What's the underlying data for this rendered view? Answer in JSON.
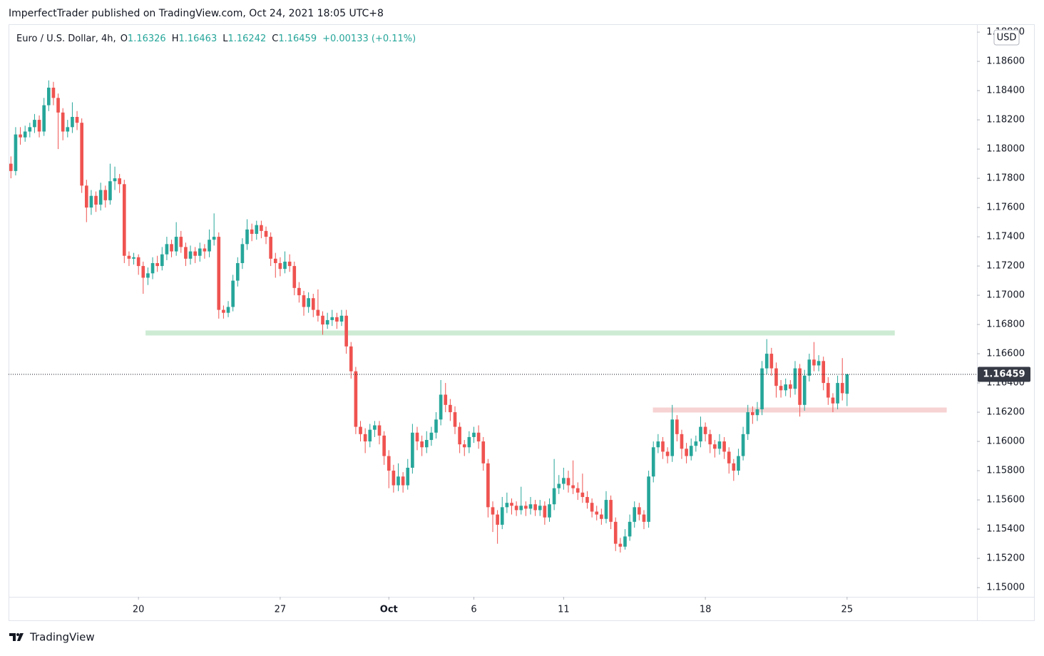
{
  "header": {
    "byline": "ImperfectTrader published on TradingView.com, Oct 24, 2021 18:05 UTC+8",
    "footer": "TradingView"
  },
  "chart_data": {
    "type": "candlestick",
    "symbol": "Euro / U.S. Dollar, 4h,",
    "legend_keys": [
      "O",
      "H",
      "L",
      "C"
    ],
    "change": "+0.00133 (+0.11%)",
    "currency": "USD",
    "up_color": "#26a69a",
    "down_color": "#ef5350",
    "xlim": [
      0,
      205
    ],
    "xticks": [
      {
        "value": 27,
        "label": "20"
      },
      {
        "value": 57,
        "label": "27"
      },
      {
        "value": 80,
        "label": "Oct"
      },
      {
        "value": 98,
        "label": "6"
      },
      {
        "value": 117,
        "label": "11"
      },
      {
        "value": 147,
        "label": "18"
      },
      {
        "value": 177,
        "label": "25"
      }
    ],
    "ylim": [
      1.14937,
      1.18854
    ],
    "yticks": [
      {
        "value": 1.15,
        "label": "1.15000"
      },
      {
        "value": 1.152,
        "label": "1.15200"
      },
      {
        "value": 1.154,
        "label": "1.15400"
      },
      {
        "value": 1.156,
        "label": "1.15600"
      },
      {
        "value": 1.158,
        "label": "1.15800"
      },
      {
        "value": 1.16,
        "label": "1.16000"
      },
      {
        "value": 1.162,
        "label": "1.16200"
      },
      {
        "value": 1.164,
        "label": "1.16400"
      },
      {
        "value": 1.166,
        "label": "1.16600"
      },
      {
        "value": 1.168,
        "label": "1.16800"
      },
      {
        "value": 1.17,
        "label": "1.17000"
      },
      {
        "value": 1.172,
        "label": "1.17200"
      },
      {
        "value": 1.174,
        "label": "1.17400"
      },
      {
        "value": 1.176,
        "label": "1.17600"
      },
      {
        "value": 1.178,
        "label": "1.17800"
      },
      {
        "value": 1.18,
        "label": "1.18000"
      },
      {
        "value": 1.182,
        "label": "1.18200"
      },
      {
        "value": 1.184,
        "label": "1.18400"
      },
      {
        "value": 1.186,
        "label": "1.18600"
      },
      {
        "value": 1.188,
        "label": "1.18800"
      }
    ],
    "zones": [
      {
        "y": 1.16742,
        "x": [
          29,
          187.6
        ],
        "color": "#cdebd3"
      },
      {
        "y": 1.16215,
        "x": [
          136.4,
          198.6
        ],
        "color": "#f7d3d3"
      }
    ],
    "candles": [
      [
        1.179,
        1.1795,
        1.178,
        1.1785
      ],
      [
        1.1785,
        1.1815,
        1.1782,
        1.181
      ],
      [
        1.181,
        1.1815,
        1.1803,
        1.1808
      ],
      [
        1.1808,
        1.1816,
        1.1805,
        1.1812
      ],
      [
        1.1812,
        1.1818,
        1.1808,
        1.1815
      ],
      [
        1.1815,
        1.1824,
        1.1811,
        1.182
      ],
      [
        1.182,
        1.1823,
        1.1808,
        1.1812
      ],
      [
        1.1812,
        1.1835,
        1.1809,
        1.183
      ],
      [
        1.183,
        1.1847,
        1.1826,
        1.1842
      ],
      [
        1.1842,
        1.1846,
        1.183,
        1.1835
      ],
      [
        1.1835,
        1.1838,
        1.18,
        1.1825
      ],
      [
        1.1825,
        1.1828,
        1.1806,
        1.1812
      ],
      [
        1.1812,
        1.182,
        1.1808,
        1.1815
      ],
      [
        1.1815,
        1.1832,
        1.1811,
        1.1822
      ],
      [
        1.1822,
        1.1826,
        1.1813,
        1.1818
      ],
      [
        1.1818,
        1.1821,
        1.177,
        1.1775
      ],
      [
        1.1775,
        1.1779,
        1.175,
        1.176
      ],
      [
        1.176,
        1.1772,
        1.1755,
        1.1768
      ],
      [
        1.1768,
        1.1771,
        1.1757,
        1.1762
      ],
      [
        1.1762,
        1.1777,
        1.1758,
        1.1772
      ],
      [
        1.1772,
        1.1775,
        1.176,
        1.1765
      ],
      [
        1.1765,
        1.179,
        1.1762,
        1.1778
      ],
      [
        1.1778,
        1.1788,
        1.1772,
        1.178
      ],
      [
        1.178,
        1.1783,
        1.177,
        1.1776
      ],
      [
        1.1776,
        1.1779,
        1.1722,
        1.1727
      ],
      [
        1.1727,
        1.173,
        1.172,
        1.1725
      ],
      [
        1.1725,
        1.1729,
        1.1721,
        1.1726
      ],
      [
        1.1726,
        1.1728,
        1.1714,
        1.172
      ],
      [
        1.172,
        1.1723,
        1.1701,
        1.1712
      ],
      [
        1.1712,
        1.1719,
        1.1707,
        1.1715
      ],
      [
        1.1715,
        1.1726,
        1.1711,
        1.1722
      ],
      [
        1.1722,
        1.1727,
        1.1716,
        1.172
      ],
      [
        1.172,
        1.1733,
        1.1717,
        1.1728
      ],
      [
        1.1728,
        1.174,
        1.1724,
        1.1735
      ],
      [
        1.1735,
        1.1738,
        1.1726,
        1.173
      ],
      [
        1.173,
        1.175,
        1.1727,
        1.174
      ],
      [
        1.174,
        1.1744,
        1.1729,
        1.1733
      ],
      [
        1.1733,
        1.1736,
        1.172,
        1.1725
      ],
      [
        1.1725,
        1.1734,
        1.1721,
        1.173
      ],
      [
        1.173,
        1.1733,
        1.1722,
        1.1727
      ],
      [
        1.1727,
        1.1736,
        1.1723,
        1.1732
      ],
      [
        1.1732,
        1.1735,
        1.1725,
        1.173
      ],
      [
        1.173,
        1.1745,
        1.1726,
        1.1738
      ],
      [
        1.1738,
        1.1756,
        1.1734,
        1.174
      ],
      [
        1.174,
        1.1743,
        1.1684,
        1.169
      ],
      [
        1.169,
        1.1693,
        1.1684,
        1.1688
      ],
      [
        1.1688,
        1.1696,
        1.1685,
        1.1692
      ],
      [
        1.1692,
        1.1714,
        1.1689,
        1.171
      ],
      [
        1.171,
        1.1726,
        1.1706,
        1.1722
      ],
      [
        1.1722,
        1.1739,
        1.1718,
        1.1735
      ],
      [
        1.1735,
        1.1752,
        1.1731,
        1.1745
      ],
      [
        1.1745,
        1.1749,
        1.1737,
        1.1742
      ],
      [
        1.1742,
        1.1751,
        1.1738,
        1.1748
      ],
      [
        1.1748,
        1.1751,
        1.1739,
        1.1744
      ],
      [
        1.1744,
        1.1747,
        1.1735,
        1.174
      ],
      [
        1.174,
        1.1743,
        1.172,
        1.1725
      ],
      [
        1.1725,
        1.1729,
        1.1712,
        1.1722
      ],
      [
        1.1722,
        1.1726,
        1.1713,
        1.1718
      ],
      [
        1.1718,
        1.173,
        1.1715,
        1.1723
      ],
      [
        1.1723,
        1.1728,
        1.1716,
        1.172
      ],
      [
        1.172,
        1.1723,
        1.17,
        1.1705
      ],
      [
        1.1705,
        1.1709,
        1.1695,
        1.17
      ],
      [
        1.17,
        1.1703,
        1.1686,
        1.1692
      ],
      [
        1.1692,
        1.1702,
        1.1688,
        1.1698
      ],
      [
        1.1698,
        1.1701,
        1.1685,
        1.169
      ],
      [
        1.169,
        1.1704,
        1.1682,
        1.1686
      ],
      [
        1.1686,
        1.1689,
        1.1673,
        1.168
      ],
      [
        1.168,
        1.1688,
        1.1677,
        1.1683
      ],
      [
        1.1683,
        1.169,
        1.1679,
        1.1685
      ],
      [
        1.1685,
        1.1688,
        1.1677,
        1.1682
      ],
      [
        1.1682,
        1.169,
        1.1679,
        1.1686
      ],
      [
        1.1686,
        1.169,
        1.166,
        1.1665
      ],
      [
        1.1665,
        1.1668,
        1.1643,
        1.1648
      ],
      [
        1.1648,
        1.1651,
        1.1605,
        1.161
      ],
      [
        1.161,
        1.1614,
        1.16,
        1.1605
      ],
      [
        1.1605,
        1.1609,
        1.1592,
        1.16
      ],
      [
        1.16,
        1.1612,
        1.1596,
        1.1608
      ],
      [
        1.1608,
        1.1614,
        1.1603,
        1.1611
      ],
      [
        1.1611,
        1.1614,
        1.1598,
        1.1604
      ],
      [
        1.1604,
        1.1607,
        1.1584,
        1.159
      ],
      [
        1.159,
        1.1594,
        1.1568,
        1.158
      ],
      [
        1.158,
        1.1584,
        1.1565,
        1.157
      ],
      [
        1.157,
        1.1585,
        1.1566,
        1.1576
      ],
      [
        1.1576,
        1.1579,
        1.1565,
        1.157
      ],
      [
        1.157,
        1.1588,
        1.1567,
        1.1582
      ],
      [
        1.1582,
        1.1612,
        1.1578,
        1.1606
      ],
      [
        1.1606,
        1.161,
        1.1594,
        1.16
      ],
      [
        1.16,
        1.1604,
        1.159,
        1.1596
      ],
      [
        1.1596,
        1.1607,
        1.1592,
        1.1601
      ],
      [
        1.1601,
        1.161,
        1.1597,
        1.1606
      ],
      [
        1.1606,
        1.162,
        1.1602,
        1.1615
      ],
      [
        1.1615,
        1.1642,
        1.1611,
        1.1632
      ],
      [
        1.1632,
        1.164,
        1.162,
        1.1625
      ],
      [
        1.1625,
        1.1629,
        1.1614,
        1.162
      ],
      [
        1.162,
        1.1624,
        1.1605,
        1.161
      ],
      [
        1.161,
        1.1613,
        1.1592,
        1.1598
      ],
      [
        1.1598,
        1.1601,
        1.159,
        1.1596
      ],
      [
        1.1596,
        1.1607,
        1.1592,
        1.1603
      ],
      [
        1.1603,
        1.161,
        1.1599,
        1.1606
      ],
      [
        1.1606,
        1.1611,
        1.1595,
        1.16
      ],
      [
        1.16,
        1.1603,
        1.158,
        1.1585
      ],
      [
        1.1585,
        1.1588,
        1.1548,
        1.1555
      ],
      [
        1.1555,
        1.1559,
        1.1538,
        1.155
      ],
      [
        1.155,
        1.1553,
        1.153,
        1.1543
      ],
      [
        1.1543,
        1.1562,
        1.154,
        1.1555
      ],
      [
        1.1555,
        1.1565,
        1.1551,
        1.1558
      ],
      [
        1.1558,
        1.1561,
        1.155,
        1.1556
      ],
      [
        1.1556,
        1.1559,
        1.1549,
        1.1553
      ],
      [
        1.1553,
        1.1569,
        1.155,
        1.1556
      ],
      [
        1.1556,
        1.1559,
        1.1549,
        1.1554
      ],
      [
        1.1554,
        1.1562,
        1.155,
        1.1557
      ],
      [
        1.1557,
        1.156,
        1.1549,
        1.1553
      ],
      [
        1.1553,
        1.156,
        1.1549,
        1.1556
      ],
      [
        1.1556,
        1.1559,
        1.1543,
        1.1548
      ],
      [
        1.1548,
        1.1561,
        1.1545,
        1.1557
      ],
      [
        1.1557,
        1.1588,
        1.1553,
        1.1568
      ],
      [
        1.1568,
        1.1577,
        1.1564,
        1.1571
      ],
      [
        1.1571,
        1.1582,
        1.1567,
        1.1575
      ],
      [
        1.1575,
        1.158,
        1.1565,
        1.157
      ],
      [
        1.157,
        1.1587,
        1.1564,
        1.1568
      ],
      [
        1.1568,
        1.1572,
        1.156,
        1.1565
      ],
      [
        1.1565,
        1.1578,
        1.1558,
        1.1562
      ],
      [
        1.1562,
        1.1566,
        1.1554,
        1.1558
      ],
      [
        1.1558,
        1.1561,
        1.1548,
        1.1552
      ],
      [
        1.1552,
        1.1556,
        1.1546,
        1.155
      ],
      [
        1.155,
        1.1554,
        1.1543,
        1.1547
      ],
      [
        1.1547,
        1.1566,
        1.1544,
        1.156
      ],
      [
        1.156,
        1.1563,
        1.154,
        1.1545
      ],
      [
        1.1545,
        1.1548,
        1.1525,
        1.153
      ],
      [
        1.153,
        1.1534,
        1.1524,
        1.1528
      ],
      [
        1.1528,
        1.154,
        1.1526,
        1.1535
      ],
      [
        1.1535,
        1.155,
        1.1532,
        1.1545
      ],
      [
        1.1545,
        1.1559,
        1.1541,
        1.1555
      ],
      [
        1.1555,
        1.1558,
        1.1546,
        1.155
      ],
      [
        1.155,
        1.1553,
        1.154,
        1.1545
      ],
      [
        1.1545,
        1.158,
        1.1541,
        1.1576
      ],
      [
        1.1576,
        1.16,
        1.1572,
        1.1596
      ],
      [
        1.1596,
        1.1605,
        1.1592,
        1.16
      ],
      [
        1.16,
        1.1603,
        1.1588,
        1.1593
      ],
      [
        1.1593,
        1.1596,
        1.1585,
        1.159
      ],
      [
        1.159,
        1.1625,
        1.1586,
        1.1615
      ],
      [
        1.1615,
        1.1618,
        1.16,
        1.1605
      ],
      [
        1.1605,
        1.1608,
        1.1588,
        1.1595
      ],
      [
        1.1595,
        1.1599,
        1.1585,
        1.159
      ],
      [
        1.159,
        1.1602,
        1.1587,
        1.1597
      ],
      [
        1.1597,
        1.1604,
        1.1593,
        1.16
      ],
      [
        1.16,
        1.1617,
        1.1596,
        1.161
      ],
      [
        1.161,
        1.1613,
        1.16,
        1.1605
      ],
      [
        1.1605,
        1.1608,
        1.1592,
        1.1598
      ],
      [
        1.1598,
        1.1601,
        1.1589,
        1.1595
      ],
      [
        1.1595,
        1.1605,
        1.1591,
        1.16
      ],
      [
        1.16,
        1.1603,
        1.1588,
        1.1593
      ],
      [
        1.1593,
        1.1596,
        1.1578,
        1.1585
      ],
      [
        1.1585,
        1.1588,
        1.1573,
        1.158
      ],
      [
        1.158,
        1.1595,
        1.1577,
        1.159
      ],
      [
        1.159,
        1.161,
        1.1587,
        1.1605
      ],
      [
        1.1605,
        1.1625,
        1.1601,
        1.162
      ],
      [
        1.162,
        1.1624,
        1.1612,
        1.1618
      ],
      [
        1.1618,
        1.1627,
        1.1614,
        1.1622
      ],
      [
        1.1622,
        1.1655,
        1.1618,
        1.165
      ],
      [
        1.165,
        1.167,
        1.1646,
        1.166
      ],
      [
        1.166,
        1.1664,
        1.1645,
        1.165
      ],
      [
        1.165,
        1.1654,
        1.163,
        1.1638
      ],
      [
        1.1638,
        1.1642,
        1.163,
        1.1635
      ],
      [
        1.1635,
        1.1643,
        1.1631,
        1.1639
      ],
      [
        1.1639,
        1.1642,
        1.163,
        1.1636
      ],
      [
        1.1636,
        1.1655,
        1.1632,
        1.165
      ],
      [
        1.165,
        1.1653,
        1.1617,
        1.1625
      ],
      [
        1.1625,
        1.1649,
        1.1621,
        1.1645
      ],
      [
        1.1645,
        1.166,
        1.1641,
        1.1656
      ],
      [
        1.1656,
        1.1668,
        1.1648,
        1.1652
      ],
      [
        1.1652,
        1.1659,
        1.1648,
        1.1655
      ],
      [
        1.1655,
        1.1658,
        1.1635,
        1.164
      ],
      [
        1.164,
        1.1644,
        1.1625,
        1.163
      ],
      [
        1.163,
        1.1633,
        1.162,
        1.1626
      ],
      [
        1.1626,
        1.1645,
        1.1622,
        1.164
      ],
      [
        1.164,
        1.1657,
        1.1628,
        1.1633
      ],
      [
        1.16326,
        1.16463,
        1.16242,
        1.16459
      ]
    ]
  }
}
